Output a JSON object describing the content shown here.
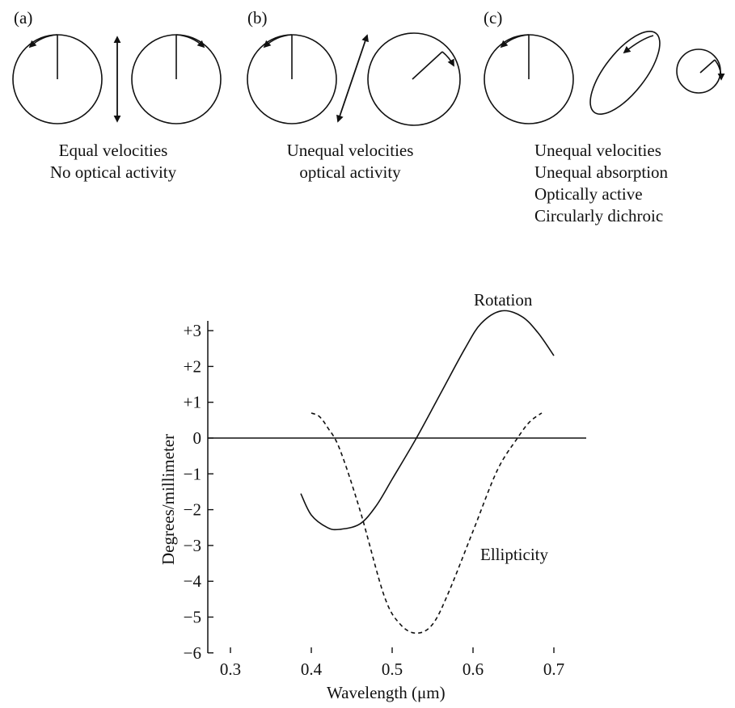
{
  "panels": [
    {
      "label": "(a)",
      "caption": [
        "Equal velocities",
        "No optical activity"
      ]
    },
    {
      "label": "(b)",
      "caption": [
        "Unequal velocities",
        "optical activity"
      ]
    },
    {
      "label": "(c)",
      "caption": [
        "Unequal velocities",
        "Unequal absorption",
        "Optically active",
        "Circularly dichroic"
      ]
    }
  ],
  "chart_data": {
    "type": "line",
    "title": "",
    "xlabel": "Wavelength (μm)",
    "ylabel": "Degrees/millimeter",
    "xlim": [
      0.27,
      0.74
    ],
    "ylim": [
      -6,
      3.4
    ],
    "x_ticks": [
      0.3,
      0.4,
      0.5,
      0.6,
      0.7
    ],
    "x_tick_labels": [
      "0.3",
      "0.4",
      "0.5",
      "0.6",
      "0.7"
    ],
    "y_ticks": [
      3,
      2,
      1,
      0,
      -1,
      -2,
      -3,
      -4,
      -5,
      -6
    ],
    "y_tick_labels": [
      "+3",
      "+2",
      "+1",
      "0",
      "−1",
      "−2",
      "−3",
      "−4",
      "−5",
      "−6"
    ],
    "grid": false,
    "zero_line": true,
    "series": [
      {
        "name": "Rotation",
        "style": "solid",
        "x": [
          0.387,
          0.4,
          0.42,
          0.435,
          0.46,
          0.48,
          0.5,
          0.53,
          0.56,
          0.59,
          0.61,
          0.635,
          0.66,
          0.68,
          0.7
        ],
        "y": [
          -1.55,
          -2.15,
          -2.5,
          -2.55,
          -2.4,
          -1.9,
          -1.15,
          0.0,
          1.25,
          2.5,
          3.2,
          3.55,
          3.4,
          2.95,
          2.3
        ]
      },
      {
        "name": "Ellipticity",
        "style": "dashed",
        "x": [
          0.4,
          0.41,
          0.42,
          0.435,
          0.46,
          0.49,
          0.51,
          0.53,
          0.55,
          0.57,
          0.6,
          0.63,
          0.655,
          0.67,
          0.685
        ],
        "y": [
          0.7,
          0.6,
          0.3,
          -0.3,
          -2.0,
          -4.4,
          -5.2,
          -5.45,
          -5.2,
          -4.3,
          -2.6,
          -0.9,
          0.0,
          0.45,
          0.7
        ]
      }
    ]
  }
}
